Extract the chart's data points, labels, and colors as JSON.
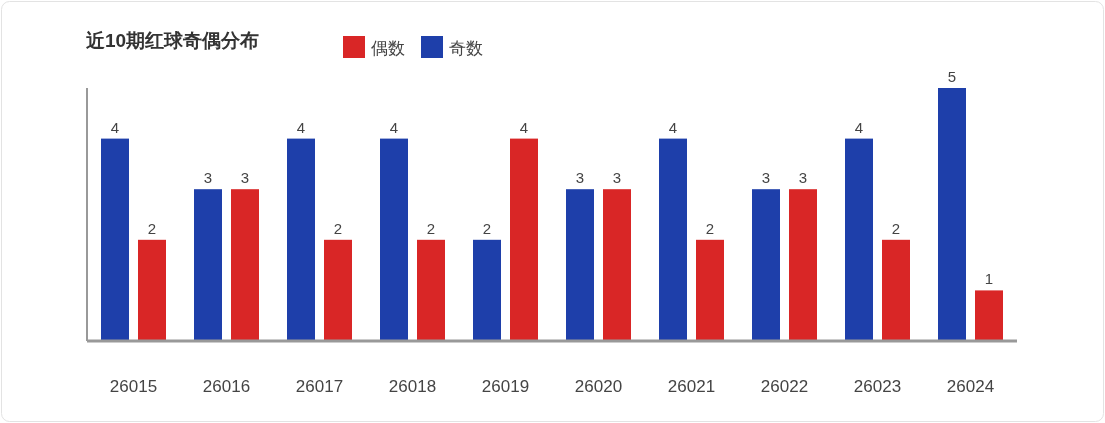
{
  "chart_data": {
    "type": "bar",
    "title": "近10期红球奇偶分布",
    "categories": [
      "26015",
      "26016",
      "26017",
      "26018",
      "26019",
      "26020",
      "26021",
      "26022",
      "26023",
      "26024"
    ],
    "series": [
      {
        "name": "奇数",
        "color": "#1e3faa",
        "values": [
          4,
          3,
          4,
          4,
          2,
          3,
          4,
          3,
          4,
          5
        ]
      },
      {
        "name": "偶数",
        "color": "#d92626",
        "values": [
          2,
          3,
          2,
          2,
          4,
          3,
          2,
          3,
          2,
          1
        ]
      }
    ],
    "data_labels": true,
    "grid": false,
    "legend": "top left"
  }
}
